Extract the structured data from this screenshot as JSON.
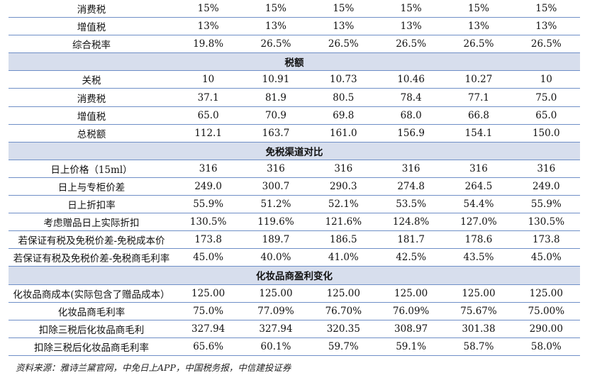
{
  "table": {
    "rows": [
      {
        "type": "row",
        "label": "消费税",
        "values": [
          "15%",
          "15%",
          "15%",
          "15%",
          "15%",
          "15%"
        ]
      },
      {
        "type": "row",
        "label": "增值税",
        "values": [
          "13%",
          "13%",
          "13%",
          "13%",
          "13%",
          "13%"
        ]
      },
      {
        "type": "row",
        "label": "综合税率",
        "values": [
          "19.8%",
          "26.5%",
          "26.5%",
          "26.5%",
          "26.5%",
          "26.5%"
        ]
      },
      {
        "type": "section",
        "label": "税额"
      },
      {
        "type": "row",
        "label": "关税",
        "values": [
          "10",
          "10.91",
          "10.73",
          "10.46",
          "10.27",
          "10"
        ]
      },
      {
        "type": "row",
        "label": "消费税",
        "values": [
          "37.1",
          "81.9",
          "80.5",
          "78.4",
          "77.1",
          "75.0"
        ]
      },
      {
        "type": "row",
        "label": "增值税",
        "values": [
          "65.0",
          "70.9",
          "69.8",
          "68.0",
          "66.8",
          "65.0"
        ]
      },
      {
        "type": "row",
        "label": "总税额",
        "values": [
          "112.1",
          "163.7",
          "161.0",
          "156.9",
          "154.1",
          "150.0"
        ]
      },
      {
        "type": "section",
        "label": "免税渠道对比"
      },
      {
        "type": "row",
        "label": "日上价格（15ml）",
        "values": [
          "316",
          "316",
          "316",
          "316",
          "316",
          "316"
        ]
      },
      {
        "type": "row",
        "label": "日上与专柜价差",
        "values": [
          "249.0",
          "300.7",
          "290.3",
          "274.8",
          "264.5",
          "249.0"
        ]
      },
      {
        "type": "row",
        "label": "日上折扣率",
        "values": [
          "55.9%",
          "51.2%",
          "52.1%",
          "53.5%",
          "54.4%",
          "55.9%"
        ]
      },
      {
        "type": "row",
        "label": "考虑赠品日上实际折扣",
        "values": [
          "130.5%",
          "119.6%",
          "121.6%",
          "124.8%",
          "127.0%",
          "130.5%"
        ]
      },
      {
        "type": "row",
        "label": "若保证有税及免税价差-免税成本价",
        "values": [
          "173.8",
          "189.7",
          "186.5",
          "181.7",
          "178.6",
          "173.8"
        ]
      },
      {
        "type": "row",
        "label": "若保证有税及免税价差-免税商毛利率",
        "values": [
          "45.0%",
          "40.0%",
          "41.0%",
          "42.5%",
          "43.5%",
          "45.0%"
        ]
      },
      {
        "type": "section",
        "label": "化妆品商盈利变化"
      },
      {
        "type": "row",
        "label": "化妆品商成本(实际包含了赠品成本）",
        "values": [
          "125.00",
          "125.00",
          "125.00",
          "125.00",
          "125.00",
          "125.00"
        ]
      },
      {
        "type": "row",
        "label": "化妆品商毛利率",
        "values": [
          "75.0%",
          "77.09%",
          "76.70%",
          "76.09%",
          "75.67%",
          "75.00%"
        ]
      },
      {
        "type": "row",
        "label": "扣除三税后化妆品商毛利",
        "values": [
          "327.94",
          "327.94",
          "320.35",
          "308.97",
          "301.38",
          "290.00"
        ]
      },
      {
        "type": "row",
        "label": "扣除三税后化妆品商毛利率",
        "values": [
          "65.6%",
          "60.1%",
          "59.7%",
          "59.1%",
          "58.7%",
          "58.0%"
        ]
      }
    ]
  },
  "source": "资料来源：雅诗兰黛官网，中免日上APP，中国税务报，中信建投证券"
}
